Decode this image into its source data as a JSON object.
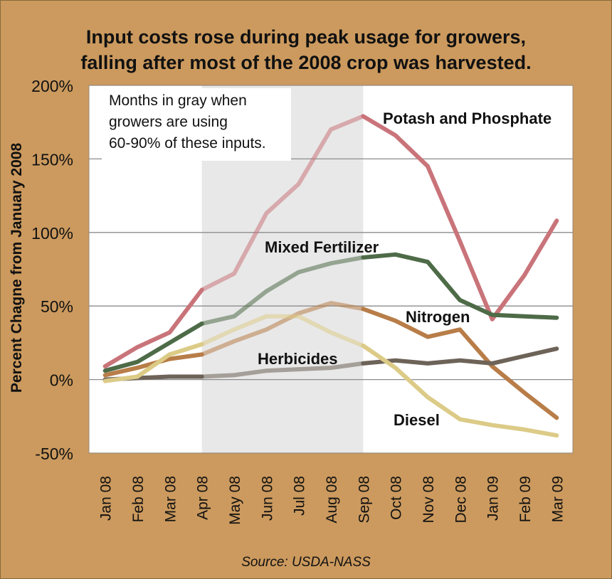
{
  "title_line1": "Input costs rose during peak usage for growers,",
  "title_line2": "falling after most of the 2008 crop was harvested.",
  "source": "Source: USDA-NASS",
  "note": [
    "Months in gray when",
    "growers are using",
    "60-90% of these inputs."
  ],
  "colors": {
    "background": "#cc9a5e",
    "plot": "#ffffff",
    "shade": "#e8e8e8",
    "grid": "#8c8c8c"
  },
  "chart_data": {
    "type": "line",
    "title": "Input costs rose during peak usage for growers, falling after most of the 2008 crop was harvested.",
    "xlabel": "",
    "ylabel": "Percent Chagne from January 2008",
    "categories": [
      "Jan 08",
      "Feb 08",
      "Mar 08",
      "Apr 08",
      "May 08",
      "Jun 08",
      "Jul 08",
      "Aug 08",
      "Sep 08",
      "Oct 08",
      "Nov 08",
      "Dec 08",
      "Jan 09",
      "Feb 09",
      "Mar 09"
    ],
    "ylim": [
      -50,
      200
    ],
    "yticks": [
      -50,
      0,
      50,
      100,
      150,
      200
    ],
    "ytick_labels": [
      "-50%",
      "0%",
      "50%",
      "100%",
      "150%",
      "200%"
    ],
    "grid": true,
    "shaded_months": [
      "Apr 08",
      "Sep 08"
    ],
    "series": [
      {
        "name": "Potash and Phosphate",
        "color": "#c9747a",
        "values": [
          9,
          22,
          32,
          61,
          72,
          113,
          133,
          170,
          179,
          166,
          145,
          94,
          41,
          71,
          108
        ]
      },
      {
        "name": "Mixed Fertilizer",
        "color": "#4e6b48",
        "values": [
          6,
          12,
          25,
          38,
          43,
          60,
          73,
          79,
          83,
          85,
          80,
          54,
          44,
          43,
          42
        ]
      },
      {
        "name": "Nitrogen",
        "color": "#b87d48",
        "values": [
          3,
          8,
          14,
          17,
          26,
          34,
          45,
          52,
          48,
          40,
          29,
          34,
          9,
          -9,
          -26
        ]
      },
      {
        "name": "Herbicides",
        "color": "#6e6358",
        "values": [
          0,
          1,
          2,
          2,
          3,
          6,
          7,
          8,
          11,
          13,
          11,
          13,
          11,
          16,
          21
        ]
      },
      {
        "name": "Diesel",
        "color": "#dccb87",
        "values": [
          -1,
          2,
          17,
          24,
          34,
          43,
          43,
          32,
          23,
          8,
          -12,
          -27,
          -31,
          -34,
          -38
        ]
      }
    ],
    "series_label_positions": [
      {
        "name": "Potash and Phosphate",
        "anchor": "x=Sep 08..Mar 09",
        "at_value": 183
      },
      {
        "name": "Mixed Fertilizer",
        "anchor": "x=Jun 08",
        "at_value": 91
      },
      {
        "name": "Nitrogen",
        "anchor": "x=Nov 08",
        "at_value": 42
      },
      {
        "name": "Herbicides",
        "anchor": "x=Aug 08",
        "at_value": 15
      },
      {
        "name": "Diesel",
        "anchor": "x=Nov 08",
        "at_value": -28
      }
    ]
  }
}
